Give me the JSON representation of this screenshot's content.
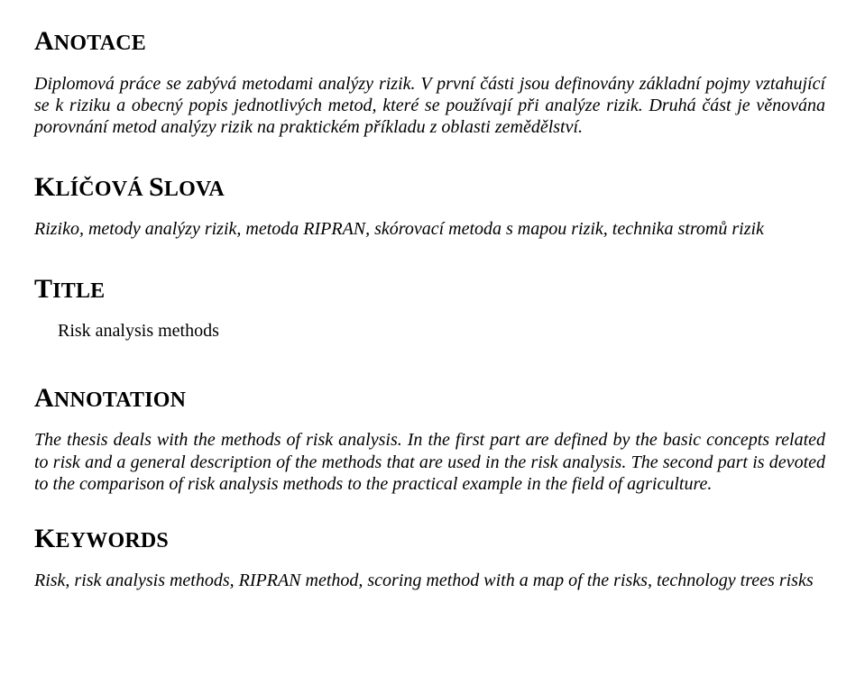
{
  "doc": {
    "background_color": "#ffffff",
    "text_color": "#000000",
    "font_family": "Times New Roman",
    "body_fontsize_pt": 15,
    "heading_fontsize_pt": 18
  },
  "sections": {
    "anotace": {
      "heading": "ANOTACE",
      "body": "Diplomová práce se zabývá metodami analýzy rizik. V první části jsou definovány základní pojmy vztahující se k riziku a obecný popis jednotlivých metod, které se používají při analýze rizik. Druhá část je věnována porovnání metod analýzy rizik na praktickém příkladu z oblasti zemědělství."
    },
    "klicova": {
      "heading": "KLÍČOVÁ SLOVA",
      "body": "Riziko, metody analýzy rizik, metoda RIPRAN, skórovací metoda s mapou rizik, technika stromů rizik"
    },
    "title": {
      "heading": "TITLE",
      "value": "Risk analysis methods"
    },
    "annotation": {
      "heading": "ANNOTATION",
      "body": "The thesis deals with the methods of risk analysis. In the first part are defined by the basic concepts related to risk and a general description of the methods that are used in the risk analysis. The second part is devoted to the comparison of risk analysis methods to the practical example in the field of agriculture."
    },
    "keywords": {
      "heading": "KEYWORDS",
      "body": "Risk, risk analysis methods, RIPRAN method, scoring method with a map of the risks, technology trees risks"
    }
  }
}
